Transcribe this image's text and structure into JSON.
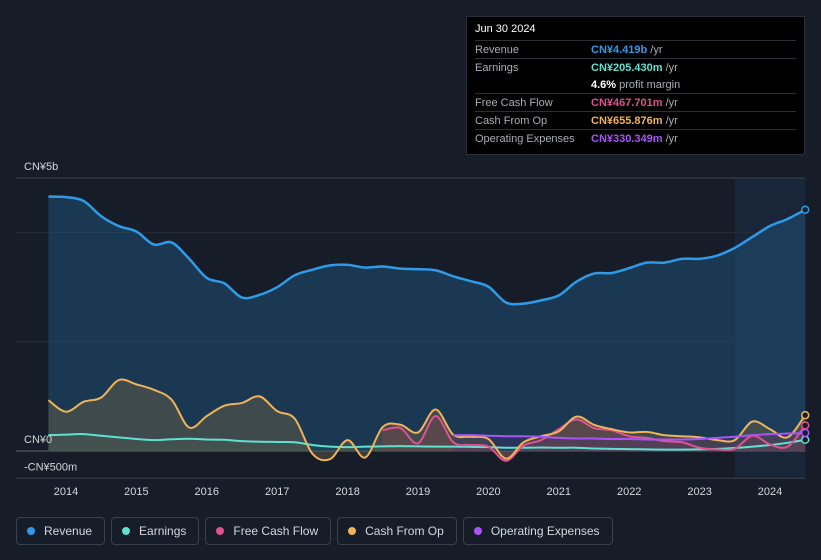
{
  "tooltip": {
    "date": "Jun 30 2024",
    "rows": [
      {
        "label": "Revenue",
        "value": "CN¥4.419b",
        "unit": "/yr",
        "color": "#2f9be8"
      },
      {
        "label": "Earnings",
        "value": "CN¥205.430m",
        "unit": "/yr",
        "color": "#60e0d0"
      },
      {
        "label": "",
        "value": "4.6%",
        "unit": "profit margin",
        "color": "#ffffff"
      },
      {
        "label": "Free Cash Flow",
        "value": "CN¥467.701m",
        "unit": "/yr",
        "color": "#e0528f"
      },
      {
        "label": "Cash From Op",
        "value": "CN¥655.876m",
        "unit": "/yr",
        "color": "#f0b35a"
      },
      {
        "label": "Operating Expenses",
        "value": "CN¥330.349m",
        "unit": "/yr",
        "color": "#a855f7"
      }
    ]
  },
  "legend": [
    {
      "label": "Revenue",
      "color": "#2f9be8"
    },
    {
      "label": "Earnings",
      "color": "#60e0d0"
    },
    {
      "label": "Free Cash Flow",
      "color": "#e0528f"
    },
    {
      "label": "Cash From Op",
      "color": "#f0b35a"
    },
    {
      "label": "Operating Expenses",
      "color": "#a855f7"
    }
  ],
  "chart_data": {
    "type": "line",
    "title": "",
    "units": "CN¥ millions",
    "ylim": [
      -500,
      5000
    ],
    "y_tick_labels": [
      {
        "label": "CN¥5b",
        "value": 5000
      },
      {
        "label": "CN¥0",
        "value": 0
      },
      {
        "label": "-CN¥500m",
        "value": -500
      }
    ],
    "xlim": [
      2013.7,
      2024.5
    ],
    "x_tick_labels": [
      "2014",
      "2015",
      "2016",
      "2017",
      "2018",
      "2019",
      "2020",
      "2021",
      "2022",
      "2023",
      "2024"
    ],
    "forecast_region_start": 2023.5,
    "series": [
      {
        "name": "Revenue",
        "color": "#2f9be8",
        "x": [
          2013.75,
          2014.0,
          2014.25,
          2014.5,
          2014.75,
          2015.0,
          2015.25,
          2015.5,
          2015.75,
          2016.0,
          2016.25,
          2016.5,
          2016.75,
          2017.0,
          2017.25,
          2017.5,
          2017.75,
          2018.0,
          2018.25,
          2018.5,
          2018.75,
          2019.0,
          2019.25,
          2019.5,
          2019.75,
          2020.0,
          2020.25,
          2020.5,
          2020.75,
          2021.0,
          2021.25,
          2021.5,
          2021.75,
          2022.0,
          2022.25,
          2022.5,
          2022.75,
          2023.0,
          2023.25,
          2023.5,
          2023.75,
          2024.0,
          2024.25,
          2024.5
        ],
        "values": [
          4660,
          4650,
          4580,
          4300,
          4120,
          4020,
          3780,
          3820,
          3520,
          3170,
          3070,
          2810,
          2860,
          3000,
          3220,
          3320,
          3400,
          3410,
          3360,
          3380,
          3340,
          3330,
          3310,
          3200,
          3110,
          3010,
          2720,
          2700,
          2760,
          2850,
          3100,
          3250,
          3260,
          3350,
          3450,
          3450,
          3520,
          3520,
          3580,
          3720,
          3920,
          4120,
          4250,
          4419
        ]
      },
      {
        "name": "Earnings",
        "color": "#60e0d0",
        "x": [
          2013.75,
          2014.0,
          2014.25,
          2014.5,
          2014.75,
          2015.0,
          2015.25,
          2015.5,
          2015.75,
          2016.0,
          2016.25,
          2016.5,
          2016.75,
          2017.0,
          2017.25,
          2017.5,
          2017.75,
          2018.0,
          2018.25,
          2018.5,
          2018.75,
          2019.0,
          2019.25,
          2019.5,
          2019.75,
          2020.0,
          2020.25,
          2020.5,
          2020.75,
          2021.0,
          2021.25,
          2021.5,
          2021.75,
          2022.0,
          2022.25,
          2022.5,
          2022.75,
          2023.0,
          2023.25,
          2023.5,
          2023.75,
          2024.0,
          2024.25,
          2024.5
        ],
        "values": [
          290,
          300,
          310,
          280,
          250,
          220,
          200,
          215,
          225,
          210,
          205,
          180,
          170,
          165,
          160,
          110,
          80,
          70,
          80,
          85,
          90,
          85,
          80,
          80,
          75,
          70,
          60,
          60,
          65,
          60,
          60,
          45,
          40,
          35,
          30,
          25,
          25,
          30,
          40,
          55,
          80,
          110,
          150,
          205
        ]
      },
      {
        "name": "Free Cash Flow",
        "color": "#e0528f",
        "start_x": 2018.5,
        "x": [
          2018.5,
          2018.75,
          2019.0,
          2019.25,
          2019.5,
          2019.75,
          2020.0,
          2020.25,
          2020.5,
          2020.75,
          2021.0,
          2021.25,
          2021.5,
          2021.75,
          2022.0,
          2022.25,
          2022.5,
          2022.75,
          2023.0,
          2023.25,
          2023.5,
          2023.75,
          2024.0,
          2024.25,
          2024.5
        ],
        "values": [
          380,
          420,
          140,
          640,
          160,
          110,
          80,
          -180,
          100,
          200,
          400,
          580,
          420,
          380,
          270,
          240,
          180,
          160,
          60,
          30,
          40,
          280,
          120,
          80,
          468
        ]
      },
      {
        "name": "Cash From Op",
        "color": "#f0b35a",
        "x": [
          2013.75,
          2014.0,
          2014.25,
          2014.5,
          2014.75,
          2015.0,
          2015.25,
          2015.5,
          2015.75,
          2016.0,
          2016.25,
          2016.5,
          2016.75,
          2017.0,
          2017.25,
          2017.5,
          2017.75,
          2018.0,
          2018.25,
          2018.5,
          2018.75,
          2019.0,
          2019.25,
          2019.5,
          2019.75,
          2020.0,
          2020.25,
          2020.5,
          2020.75,
          2021.0,
          2021.25,
          2021.5,
          2021.75,
          2022.0,
          2022.25,
          2022.5,
          2022.75,
          2023.0,
          2023.25,
          2023.5,
          2023.75,
          2024.0,
          2024.25,
          2024.5
        ],
        "values": [
          930,
          720,
          900,
          980,
          1300,
          1220,
          1120,
          940,
          430,
          640,
          830,
          880,
          1000,
          730,
          590,
          -50,
          -150,
          200,
          -120,
          440,
          480,
          340,
          760,
          300,
          260,
          220,
          -140,
          160,
          270,
          360,
          630,
          480,
          400,
          340,
          350,
          290,
          270,
          250,
          200,
          200,
          540,
          400,
          250,
          656
        ]
      },
      {
        "name": "Operating Expenses",
        "color": "#a855f7",
        "start_x": 2019.5,
        "x": [
          2019.5,
          2019.75,
          2020.0,
          2020.25,
          2020.5,
          2020.75,
          2021.0,
          2021.25,
          2021.5,
          2021.75,
          2022.0,
          2022.25,
          2022.5,
          2022.75,
          2023.0,
          2023.25,
          2023.5,
          2023.75,
          2024.0,
          2024.25,
          2024.5
        ],
        "values": [
          290,
          290,
          280,
          270,
          270,
          260,
          240,
          230,
          230,
          220,
          220,
          210,
          210,
          210,
          220,
          240,
          260,
          290,
          310,
          320,
          330
        ]
      }
    ]
  }
}
